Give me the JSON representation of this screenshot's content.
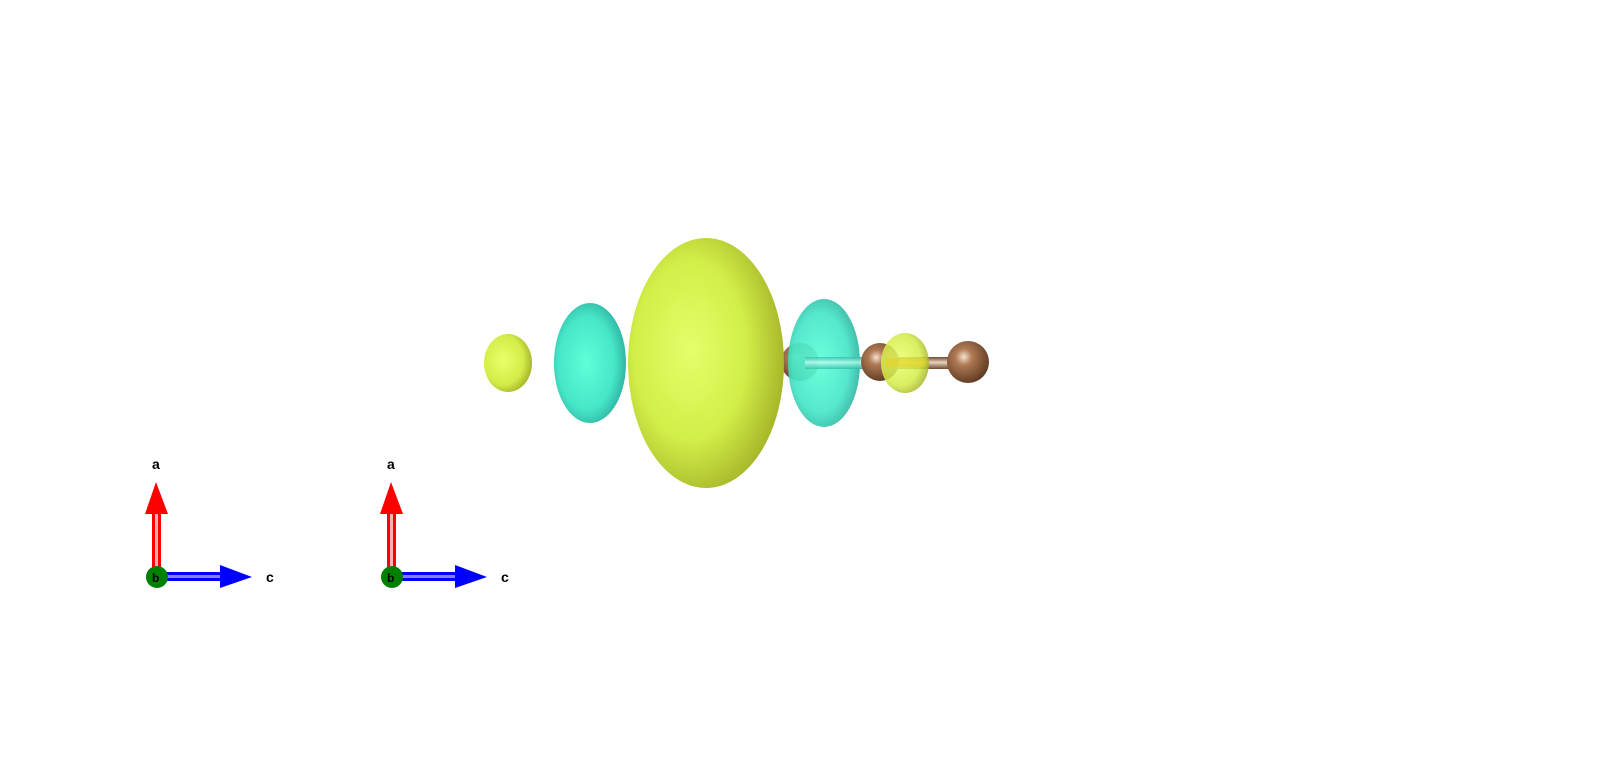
{
  "colors": {
    "background": "#ffffff",
    "positive_isosurface": "#d4ef4a",
    "negative_isosurface": "#45e3c4",
    "atom": "#8a5a3c",
    "axis_a": "#ff0000",
    "axis_b": "#008000",
    "axis_c": "#0000ff"
  },
  "compasses": [
    {
      "labels": {
        "a": "a",
        "b": "b",
        "c": "c"
      }
    },
    {
      "labels": {
        "a": "a",
        "b": "b",
        "c": "c"
      }
    }
  ]
}
